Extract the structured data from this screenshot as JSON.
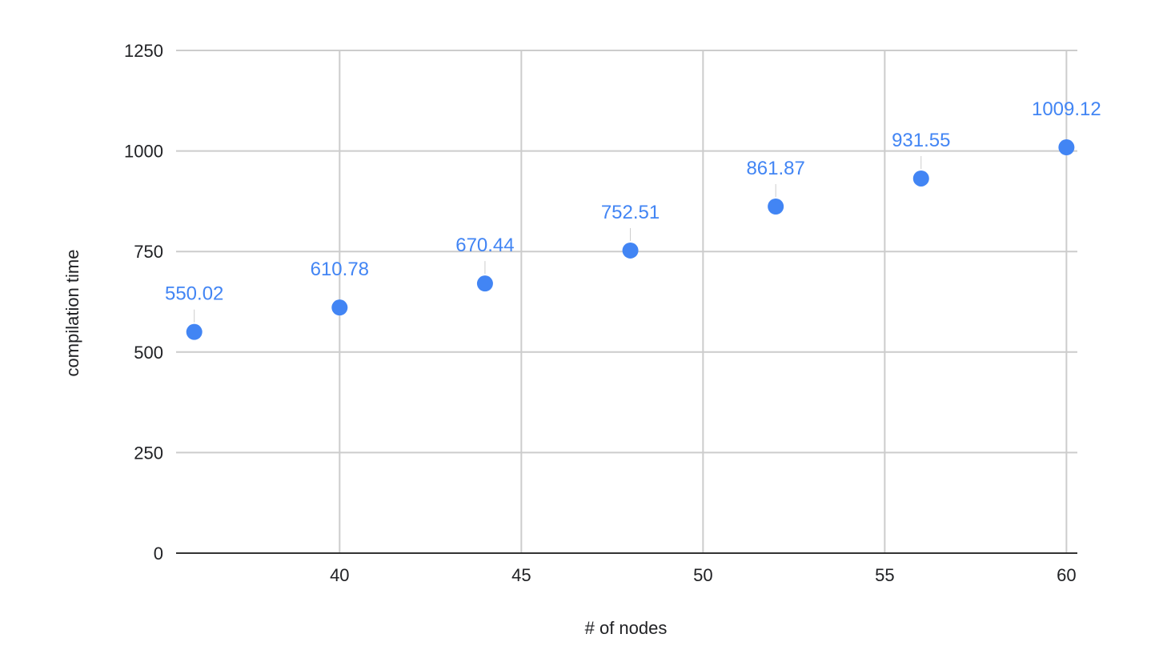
{
  "chart_data": {
    "type": "scatter",
    "title": "",
    "xlabel": "# of nodes",
    "ylabel": "compilation time",
    "xlim": [
      35.5,
      60.3
    ],
    "ylim": [
      0,
      1250
    ],
    "x_ticks": [
      40,
      45,
      50,
      55,
      60
    ],
    "y_ticks": [
      0,
      250,
      500,
      750,
      1000,
      1250
    ],
    "grid": true,
    "legend": "none",
    "point_color": "#4285f4",
    "label_color": "#4285f4",
    "series": [
      {
        "x": [
          36,
          40,
          44,
          48,
          52,
          56,
          60
        ],
        "y": [
          550.02,
          610.78,
          670.44,
          752.51,
          861.87,
          931.55,
          1009.12
        ],
        "labels": [
          "550.02",
          "610.78",
          "670.44",
          "752.51",
          "861.87",
          "931.55",
          "1009.12"
        ]
      }
    ]
  }
}
